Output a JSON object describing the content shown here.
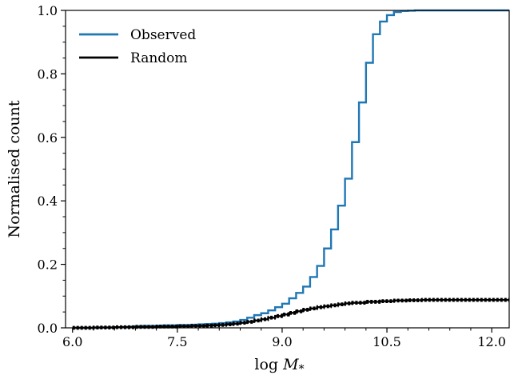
{
  "chart_data": {
    "type": "line",
    "xlabel": "log M*",
    "ylabel": "Normalised count",
    "xlim": [
      5.9,
      12.25
    ],
    "ylim": [
      0.0,
      1.0
    ],
    "xticks": [
      "6.0",
      "7.5",
      "9.0",
      "10.5",
      "12.0"
    ],
    "yticks": [
      "0.0",
      "0.2",
      "0.4",
      "0.6",
      "0.8",
      "1.0"
    ],
    "grid": false,
    "legend": "top-left",
    "series": [
      {
        "name": "Observed",
        "color": "#1f77b4",
        "style": "step",
        "x": [
          6.0,
          6.1,
          6.2,
          6.3,
          6.4,
          6.5,
          6.6,
          6.7,
          6.8,
          6.9,
          7.0,
          7.1,
          7.2,
          7.3,
          7.4,
          7.5,
          7.6,
          7.7,
          7.8,
          7.9,
          8.0,
          8.1,
          8.2,
          8.3,
          8.4,
          8.5,
          8.6,
          8.7,
          8.8,
          8.9,
          9.0,
          9.1,
          9.2,
          9.3,
          9.4,
          9.5,
          9.6,
          9.7,
          9.8,
          9.9,
          10.0,
          10.1,
          10.2,
          10.3,
          10.4,
          10.5,
          10.6,
          10.7,
          10.8,
          10.9,
          11.0,
          11.1,
          11.2,
          11.3,
          11.4,
          11.5,
          11.6,
          11.7,
          11.8,
          11.9,
          12.0,
          12.1,
          12.2
        ],
        "y": [
          0.0,
          0.0,
          0.0,
          0.0,
          0.001,
          0.001,
          0.002,
          0.003,
          0.004,
          0.005,
          0.006,
          0.006,
          0.007,
          0.008,
          0.008,
          0.009,
          0.009,
          0.01,
          0.011,
          0.012,
          0.013,
          0.015,
          0.017,
          0.02,
          0.025,
          0.032,
          0.04,
          0.046,
          0.055,
          0.065,
          0.076,
          0.093,
          0.11,
          0.13,
          0.16,
          0.195,
          0.25,
          0.31,
          0.385,
          0.47,
          0.585,
          0.71,
          0.835,
          0.925,
          0.965,
          0.985,
          0.995,
          0.998,
          0.999,
          1.0,
          1.0,
          1.0,
          1.0,
          1.0,
          1.0,
          1.0,
          1.0,
          1.0,
          1.0,
          1.0,
          1.0,
          1.0,
          1.0
        ]
      },
      {
        "name": "Random",
        "color": "#000000",
        "style": "step",
        "x": [
          6.0,
          6.3,
          6.6,
          6.9,
          7.2,
          7.5,
          7.7,
          7.9,
          8.0,
          8.1,
          8.2,
          8.3,
          8.4,
          8.5,
          8.6,
          8.7,
          8.8,
          8.9,
          9.0,
          9.1,
          9.2,
          9.3,
          9.4,
          9.5,
          9.6,
          9.7,
          9.8,
          9.9,
          10.0,
          10.2,
          10.4,
          10.6,
          10.8,
          11.0,
          11.4,
          11.8,
          12.2
        ],
        "y": [
          0.0,
          0.001,
          0.002,
          0.003,
          0.004,
          0.005,
          0.006,
          0.007,
          0.008,
          0.009,
          0.011,
          0.013,
          0.016,
          0.019,
          0.023,
          0.027,
          0.032,
          0.037,
          0.042,
          0.047,
          0.052,
          0.057,
          0.061,
          0.065,
          0.068,
          0.071,
          0.074,
          0.077,
          0.079,
          0.082,
          0.084,
          0.086,
          0.087,
          0.088,
          0.088,
          0.088,
          0.088
        ],
        "band": 0.004
      }
    ]
  }
}
